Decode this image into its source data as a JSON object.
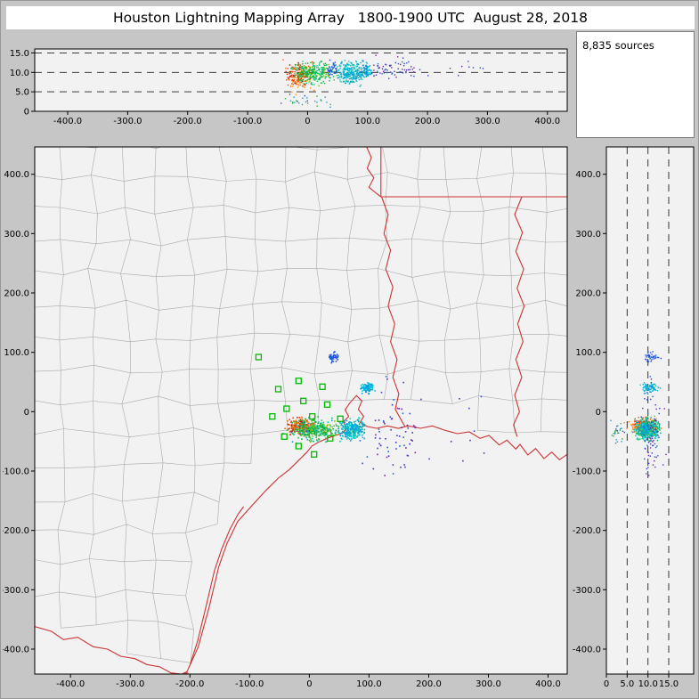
{
  "title": "Houston Lightning Mapping Array   1800-1900 UTC  August 28, 2018",
  "sources_count": "8,835 sources",
  "colors": {
    "frame_bg": "#c6c6c6",
    "panel_bg": "#f2f2f2",
    "titlebar_bg": "#ffffff",
    "border": "#000000",
    "county_line": "#a9a9a9",
    "state_line": "#cc3333",
    "station": "#00bb00",
    "dash_line": "#222222"
  },
  "chart_data": {
    "type": "scatter",
    "title": "Houston Lightning Mapping Array 1800-1900 UTC August 28, 2018",
    "sources_total": 8835,
    "units": "km",
    "panels": {
      "ew_altitude": {
        "desc": "Altitude vs East-West distance",
        "xlim": [
          -455,
          433
        ],
        "ylim": [
          0,
          16
        ],
        "xtick_vals": [
          -400,
          -300,
          -200,
          -100,
          0,
          100,
          200,
          300,
          400
        ],
        "xtick_labels": [
          "-400.0",
          "-300.0",
          "-200.0",
          "-100.0",
          "0",
          "100.0",
          "200.0",
          "300.0",
          "400.0"
        ],
        "ytick_vals": [
          15,
          10,
          5,
          0
        ],
        "ytick_labels": [
          "15.0",
          "10.0",
          "5.0",
          "0"
        ],
        "dashed_alt_lines": [
          5,
          10,
          15
        ]
      },
      "plan_view": {
        "desc": "Plan view, North-South vs East-West",
        "xlim": [
          -460,
          432
        ],
        "ylim": [
          -442,
          446
        ],
        "xtick_vals": [
          -400,
          -300,
          -200,
          -100,
          0,
          100,
          200,
          300,
          400
        ],
        "xtick_labels": [
          "-400.0",
          "-300.0",
          "-200.0",
          "-100.0",
          "0",
          "100.0",
          "200.0",
          "300.0",
          "400.0"
        ],
        "ytick_vals": [
          400,
          300,
          200,
          100,
          0,
          -100,
          -200,
          -300,
          -400
        ],
        "ytick_labels": [
          "400.0",
          "300.0",
          "200.0",
          "100.0",
          "0",
          "-100.0",
          "-200.0",
          "-300.0",
          "-400.0"
        ]
      },
      "ns_altitude": {
        "desc": "North-South distance vs Altitude",
        "xlim": [
          0,
          21
        ],
        "ylim": [
          -442,
          446
        ],
        "xtick_vals": [
          0,
          5,
          10,
          15
        ],
        "xtick_labels": [
          "0",
          "5.0",
          "10.0",
          "15.0"
        ],
        "ytick_vals": [
          400,
          300,
          200,
          100,
          0,
          -100,
          -200,
          -300,
          -400
        ],
        "ytick_labels": [
          "400.0",
          "300.0",
          "200.0",
          "100.0",
          "0",
          "-100.0",
          "-200.0",
          "-300.0",
          "-400.0"
        ],
        "dashed_alt_lines": [
          5,
          10,
          15
        ]
      }
    },
    "source_clusters": [
      {
        "name": "core-red",
        "x": -15,
        "y": -24,
        "z": 9,
        "sx": 16,
        "sy": 10,
        "sz": 2.6,
        "n": 170,
        "colors": [
          "#dd2200",
          "#ff6600",
          "#ff9500",
          "#cc0000",
          "#ff3300"
        ]
      },
      {
        "name": "core-green",
        "x": 10,
        "y": -30,
        "z": 10,
        "sx": 28,
        "sy": 13,
        "sz": 2.2,
        "n": 300,
        "colors": [
          "#00bb44",
          "#2fbf2f",
          "#00cc99",
          "#7fbf00",
          "#00aa55"
        ]
      },
      {
        "name": "east-cyan",
        "x": 72,
        "y": -30,
        "z": 10,
        "sx": 17,
        "sy": 13,
        "sz": 2.3,
        "n": 260,
        "colors": [
          "#00b8cc",
          "#00ddc8",
          "#16a0a0",
          "#00a0e8"
        ]
      },
      {
        "name": "bay-cyan",
        "x": 98,
        "y": 40,
        "z": 10.5,
        "sx": 9,
        "sy": 7,
        "sz": 1.6,
        "n": 85,
        "colors": [
          "#00aadd",
          "#0d86cf",
          "#00c8dd"
        ]
      },
      {
        "name": "north-blue",
        "x": 42,
        "y": 92,
        "z": 11,
        "sx": 7,
        "sy": 6,
        "sz": 1.4,
        "n": 40,
        "colors": [
          "#2244dd",
          "#0b66cc",
          "#3355ee"
        ]
      },
      {
        "name": "east-sparse-blue",
        "x": 140,
        "y": -35,
        "z": 11,
        "sx": 38,
        "sy": 58,
        "sz": 2,
        "n": 65,
        "colors": [
          "#3344cc",
          "#4433bb",
          "#2266cc",
          "#7722aa"
        ]
      },
      {
        "name": "far-specks",
        "x": 230,
        "y": -40,
        "z": 11,
        "sx": 60,
        "sy": 60,
        "sz": 2,
        "n": 12,
        "colors": [
          "#7722aa",
          "#3344cc",
          "#5533bb"
        ]
      },
      {
        "name": "low-scatter",
        "x": -5,
        "y": -35,
        "z": 2.8,
        "sx": 34,
        "sy": 18,
        "sz": 1.3,
        "n": 28,
        "colors": [
          "#2299cc",
          "#33aa44",
          "#2255bb"
        ]
      }
    ],
    "stations": [
      [
        -85,
        92
      ],
      [
        -52,
        38
      ],
      [
        -18,
        52
      ],
      [
        -38,
        5
      ],
      [
        -62,
        -8
      ],
      [
        -10,
        18
      ],
      [
        22,
        42
      ],
      [
        5,
        -8
      ],
      [
        -42,
        -42
      ],
      [
        -18,
        -58
      ],
      [
        8,
        -72
      ],
      [
        35,
        -45
      ],
      [
        52,
        -12
      ],
      [
        30,
        12
      ]
    ],
    "map_lines": {
      "coast": [
        [
          -248,
          -470
        ],
        [
          -230,
          -450
        ],
        [
          -205,
          -438
        ],
        [
          -186,
          -396
        ],
        [
          -168,
          -330
        ],
        [
          -152,
          -262
        ],
        [
          -138,
          -222
        ],
        [
          -120,
          -185
        ],
        [
          -96,
          -158
        ],
        [
          -72,
          -132
        ],
        [
          -52,
          -112
        ],
        [
          -34,
          -98
        ],
        [
          -16,
          -80
        ],
        [
          -4,
          -68
        ],
        [
          4,
          -58
        ],
        [
          18,
          -50
        ],
        [
          32,
          -44
        ],
        [
          44,
          -40
        ],
        [
          56,
          -36
        ],
        [
          62,
          -28
        ],
        [
          57,
          -17
        ],
        [
          66,
          -8
        ],
        [
          60,
          3
        ],
        [
          68,
          15
        ],
        [
          79,
          27
        ],
        [
          88,
          18
        ],
        [
          82,
          4
        ],
        [
          91,
          -8
        ],
        [
          85,
          -18
        ],
        [
          97,
          -25
        ],
        [
          113,
          -28
        ],
        [
          131,
          -24
        ],
        [
          149,
          -28
        ],
        [
          166,
          -24
        ],
        [
          186,
          -28
        ],
        [
          206,
          -24
        ],
        [
          226,
          -31
        ],
        [
          248,
          -37
        ],
        [
          268,
          -34
        ],
        [
          286,
          -45
        ],
        [
          301,
          -40
        ],
        [
          318,
          -56
        ],
        [
          331,
          -48
        ],
        [
          346,
          -63
        ],
        [
          353,
          -55
        ],
        [
          366,
          -73
        ],
        [
          379,
          -62
        ],
        [
          393,
          -79
        ],
        [
          406,
          -68
        ],
        [
          419,
          -81
        ],
        [
          432,
          -72
        ]
      ],
      "barrier_island": [
        [
          -201,
          -430
        ],
        [
          -187,
          -386
        ],
        [
          -173,
          -328
        ],
        [
          -159,
          -268
        ],
        [
          -147,
          -232
        ],
        [
          -133,
          -198
        ],
        [
          -119,
          -172
        ],
        [
          -110,
          -160
        ]
      ],
      "rio_grande": [
        [
          -460,
          -362
        ],
        [
          -432,
          -370
        ],
        [
          -412,
          -384
        ],
        [
          -388,
          -380
        ],
        [
          -362,
          -396
        ],
        [
          -338,
          -400
        ],
        [
          -316,
          -412
        ],
        [
          -292,
          -416
        ],
        [
          -272,
          -426
        ],
        [
          -250,
          -430
        ],
        [
          -232,
          -440
        ],
        [
          -214,
          -442
        ],
        [
          -203,
          -440
        ]
      ],
      "ok_ar_border": [
        [
          120,
          446
        ],
        [
          120,
          362
        ]
      ],
      "ar_la_border": [
        [
          120,
          362
        ],
        [
          432,
          362
        ]
      ],
      "red_river": [
        [
          96,
          446
        ],
        [
          104,
          428
        ],
        [
          97,
          410
        ],
        [
          108,
          394
        ],
        [
          100,
          378
        ],
        [
          112,
          368
        ],
        [
          120,
          362
        ]
      ],
      "tx_la_border": [
        [
          121,
          362
        ],
        [
          132,
          332
        ],
        [
          125,
          300
        ],
        [
          136,
          272
        ],
        [
          128,
          240
        ],
        [
          140,
          210
        ],
        [
          132,
          178
        ],
        [
          143,
          148
        ],
        [
          136,
          118
        ],
        [
          147,
          88
        ],
        [
          140,
          58
        ],
        [
          150,
          30
        ],
        [
          144,
          4
        ],
        [
          154,
          -14
        ],
        [
          160,
          -25
        ]
      ],
      "la_ms_border": [
        [
          356,
          362
        ],
        [
          344,
          332
        ],
        [
          357,
          302
        ],
        [
          346,
          270
        ],
        [
          359,
          240
        ],
        [
          348,
          208
        ],
        [
          360,
          178
        ],
        [
          349,
          148
        ],
        [
          358,
          118
        ],
        [
          346,
          88
        ],
        [
          356,
          58
        ],
        [
          344,
          28
        ],
        [
          352,
          0
        ],
        [
          342,
          -22
        ],
        [
          348,
          -42
        ]
      ]
    }
  }
}
